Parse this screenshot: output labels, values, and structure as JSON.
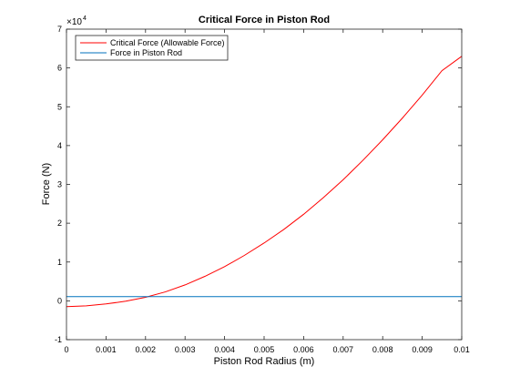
{
  "chart_data": {
    "type": "line",
    "title": "Critical Force in Piston Rod",
    "xlabel": "Piston Rod Radius (m)",
    "ylabel": "Force (N)",
    "exponent_base": "×10",
    "exponent_power": "4",
    "xlim": [
      0,
      0.01
    ],
    "ylim": [
      -1,
      7
    ],
    "x_ticks": [
      "0",
      "0.001",
      "0.002",
      "0.003",
      "0.004",
      "0.005",
      "0.006",
      "0.007",
      "0.008",
      "0.009",
      "0.01"
    ],
    "y_ticks": [
      "-1",
      "0",
      "1",
      "2",
      "3",
      "4",
      "5",
      "6",
      "7"
    ],
    "grid": false,
    "legend_position": "top-left",
    "series": [
      {
        "name": "Critical Force (Allowable Force)",
        "color": "#ff0000",
        "x": [
          0,
          0.0005,
          0.001,
          0.0015,
          0.002,
          0.0025,
          0.003,
          0.0035,
          0.004,
          0.0045,
          0.005,
          0.0055,
          0.006,
          0.0065,
          0.007,
          0.0075,
          0.008,
          0.0085,
          0.009,
          0.0095,
          0.01
        ],
        "y": [
          -0.15,
          -0.13,
          -0.08,
          -0.01,
          0.09,
          0.23,
          0.41,
          0.63,
          0.88,
          1.17,
          1.49,
          1.84,
          2.23,
          2.66,
          3.12,
          3.62,
          4.15,
          4.71,
          5.3,
          5.93,
          6.3
        ]
      },
      {
        "name": "Force in Piston Rod",
        "color": "#0072bd",
        "x": [
          0,
          0.01
        ],
        "y": [
          0.11,
          0.11
        ]
      }
    ]
  }
}
